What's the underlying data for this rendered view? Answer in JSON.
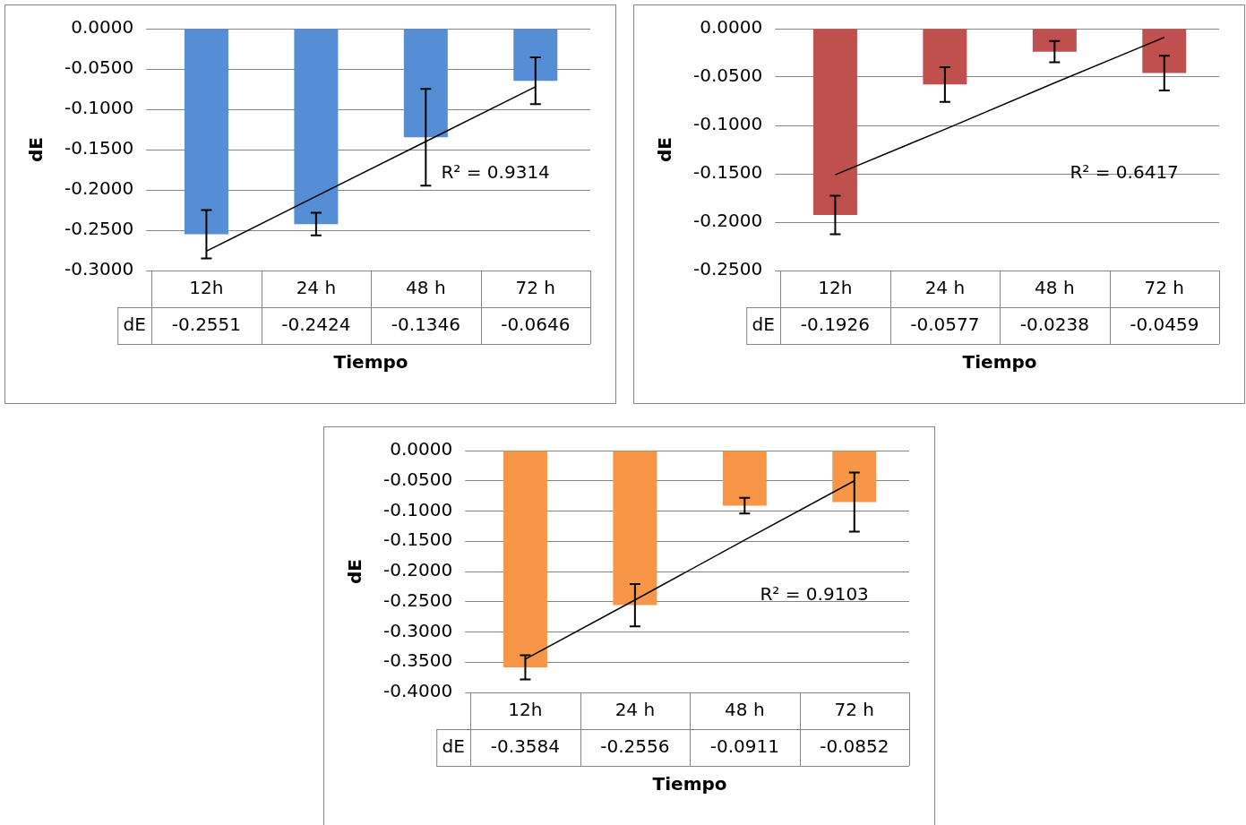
{
  "chart_data": [
    {
      "type": "bar",
      "categories": [
        "12h",
        "24 h",
        "48 h",
        "72 h"
      ],
      "xlabel": "Tiempo",
      "ylabel": "dE",
      "ylim": [
        -0.3,
        0
      ],
      "yticks": [
        {
          "value": -0.3,
          "label": "-0.3000"
        },
        {
          "value": -0.25,
          "label": "-0.2500"
        },
        {
          "value": -0.2,
          "label": "-0.2000"
        },
        {
          "value": -0.15,
          "label": "-0.1500"
        },
        {
          "value": -0.1,
          "label": "-0.1000"
        },
        {
          "value": -0.05,
          "label": "-0.0500"
        },
        {
          "value": 0,
          "label": "0.0000"
        }
      ],
      "grid": "y",
      "legend": false,
      "annotations": [
        "R² = 0.9314"
      ],
      "series": [
        {
          "name": "dE",
          "color": "#558ed5",
          "values": [
            -0.2551,
            -0.2424,
            -0.1346,
            -0.0646
          ],
          "errors": [
            0.03,
            0.014,
            0.06,
            0.029
          ],
          "value_labels": [
            "-0.2551",
            "-0.2424",
            "-0.1346",
            "-0.0646"
          ]
        },
        {
          "type": "line",
          "color": "#000000",
          "marker": "none",
          "values": [
            -0.276,
            -0.208,
            -0.14,
            -0.072
          ]
        }
      ]
    },
    {
      "type": "bar",
      "categories": [
        "12h",
        "24 h",
        "48 h",
        "72 h"
      ],
      "xlabel": "Tiempo",
      "ylabel": "dE",
      "ylim": [
        -0.25,
        0
      ],
      "yticks": [
        {
          "value": -0.25,
          "label": "-0.2500"
        },
        {
          "value": -0.2,
          "label": "-0.2000"
        },
        {
          "value": -0.15,
          "label": "-0.1500"
        },
        {
          "value": -0.1,
          "label": "-0.1000"
        },
        {
          "value": -0.05,
          "label": "-0.0500"
        },
        {
          "value": 0,
          "label": "0.0000"
        }
      ],
      "grid": "y",
      "legend": false,
      "annotations": [
        "R² = 0.6417"
      ],
      "series": [
        {
          "name": "dE",
          "color": "#c0504d",
          "values": [
            -0.1926,
            -0.0577,
            -0.0238,
            -0.0459
          ],
          "errors": [
            0.02,
            0.018,
            0.011,
            0.018
          ],
          "value_labels": [
            "-0.1926",
            "-0.0577",
            "-0.0238",
            "-0.0459"
          ]
        },
        {
          "type": "line",
          "color": "#000000",
          "marker": "none",
          "values": [
            -0.151,
            -0.104,
            -0.056,
            -0.009
          ]
        }
      ]
    },
    {
      "type": "bar",
      "categories": [
        "12h",
        "24 h",
        "48 h",
        "72 h"
      ],
      "xlabel": "Tiempo",
      "ylabel": "dE",
      "ylim": [
        -0.4,
        0
      ],
      "yticks": [
        {
          "value": -0.4,
          "label": "-0.4000"
        },
        {
          "value": -0.35,
          "label": "-0.3500"
        },
        {
          "value": -0.3,
          "label": "-0.3000"
        },
        {
          "value": -0.25,
          "label": "-0.2500"
        },
        {
          "value": -0.2,
          "label": "-0.2000"
        },
        {
          "value": -0.15,
          "label": "-0.1500"
        },
        {
          "value": -0.1,
          "label": "-0.1000"
        },
        {
          "value": -0.05,
          "label": "-0.0500"
        },
        {
          "value": 0,
          "label": "0.0000"
        }
      ],
      "grid": "y",
      "legend": false,
      "annotations": [
        "R² = 0.9103"
      ],
      "series": [
        {
          "name": "dE",
          "color": "#f79646",
          "values": [
            -0.3584,
            -0.2556,
            -0.0911,
            -0.0852
          ],
          "errors": [
            0.02,
            0.035,
            0.013,
            0.049
          ],
          "value_labels": [
            "-0.3584",
            "-0.2556",
            "-0.0911",
            "-0.0852"
          ]
        },
        {
          "type": "line",
          "color": "#000000",
          "marker": "none",
          "values": [
            -0.345,
            -0.247,
            -0.148,
            -0.05
          ]
        }
      ]
    }
  ]
}
